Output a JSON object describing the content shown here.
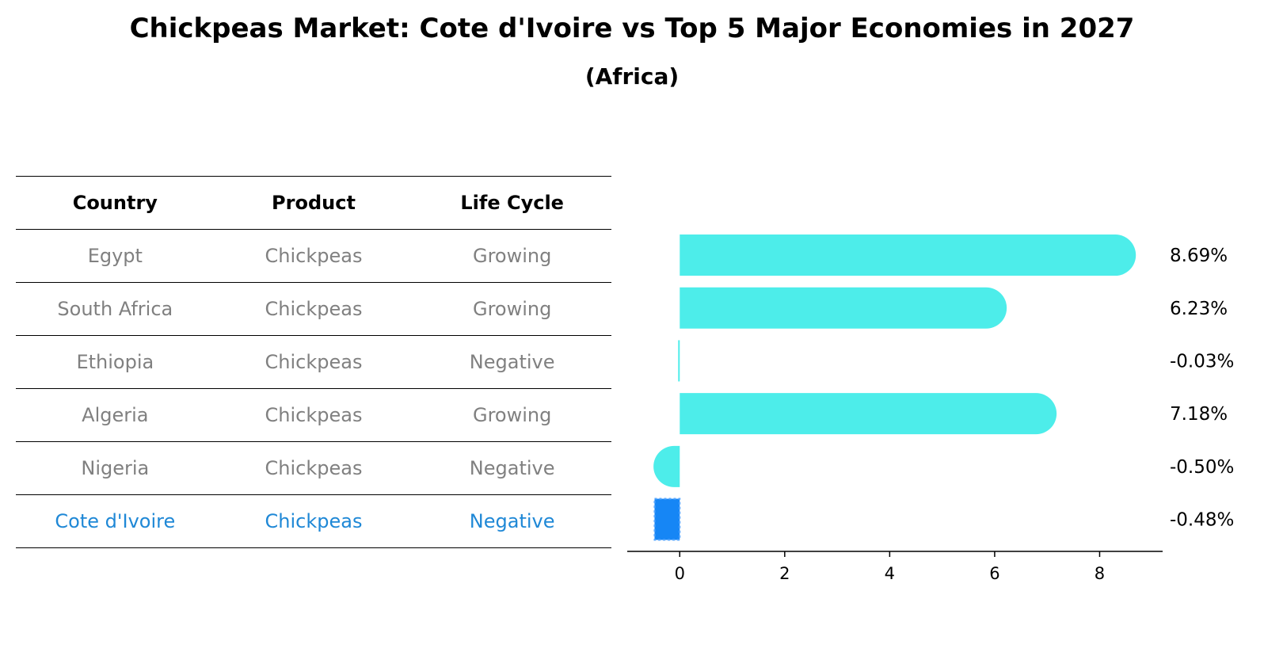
{
  "title": "Chickpeas Market: Cote d'Ivoire vs Top 5 Major Economies in 2027",
  "subtitle": "(Africa)",
  "table": {
    "headers": [
      "Country",
      "Product",
      "Life Cycle"
    ],
    "rows": [
      {
        "country": "Egypt",
        "product": "Chickpeas",
        "life_cycle": "Growing"
      },
      {
        "country": "South Africa",
        "product": "Chickpeas",
        "life_cycle": "Growing"
      },
      {
        "country": "Ethiopia",
        "product": "Chickpeas",
        "life_cycle": "Negative"
      },
      {
        "country": "Algeria",
        "product": "Chickpeas",
        "life_cycle": "Growing"
      },
      {
        "country": "Nigeria",
        "product": "Chickpeas",
        "life_cycle": "Negative"
      },
      {
        "country": "Cote d'Ivoire",
        "product": "Chickpeas",
        "life_cycle": "Negative"
      }
    ]
  },
  "chart_data": {
    "type": "bar",
    "orientation": "horizontal",
    "categories": [
      "Egypt",
      "South Africa",
      "Ethiopia",
      "Algeria",
      "Nigeria",
      "Cote d'Ivoire"
    ],
    "values": [
      8.69,
      6.23,
      -0.03,
      7.18,
      -0.5,
      -0.48
    ],
    "value_labels": [
      "8.69%",
      "6.23%",
      "-0.03%",
      "7.18%",
      "-0.50%",
      "-0.48%"
    ],
    "highlight": "Cote d'Ivoire",
    "xlim": [
      -1.0,
      9.2
    ],
    "xticks": [
      0,
      2,
      4,
      6,
      8
    ],
    "xtick_labels": [
      "0",
      "2",
      "4",
      "6",
      "8"
    ],
    "colors": {
      "bar": "#4dedea",
      "highlight": "#1686f5",
      "text_muted": "#808080",
      "text_highlight": "#1f88d6"
    }
  }
}
